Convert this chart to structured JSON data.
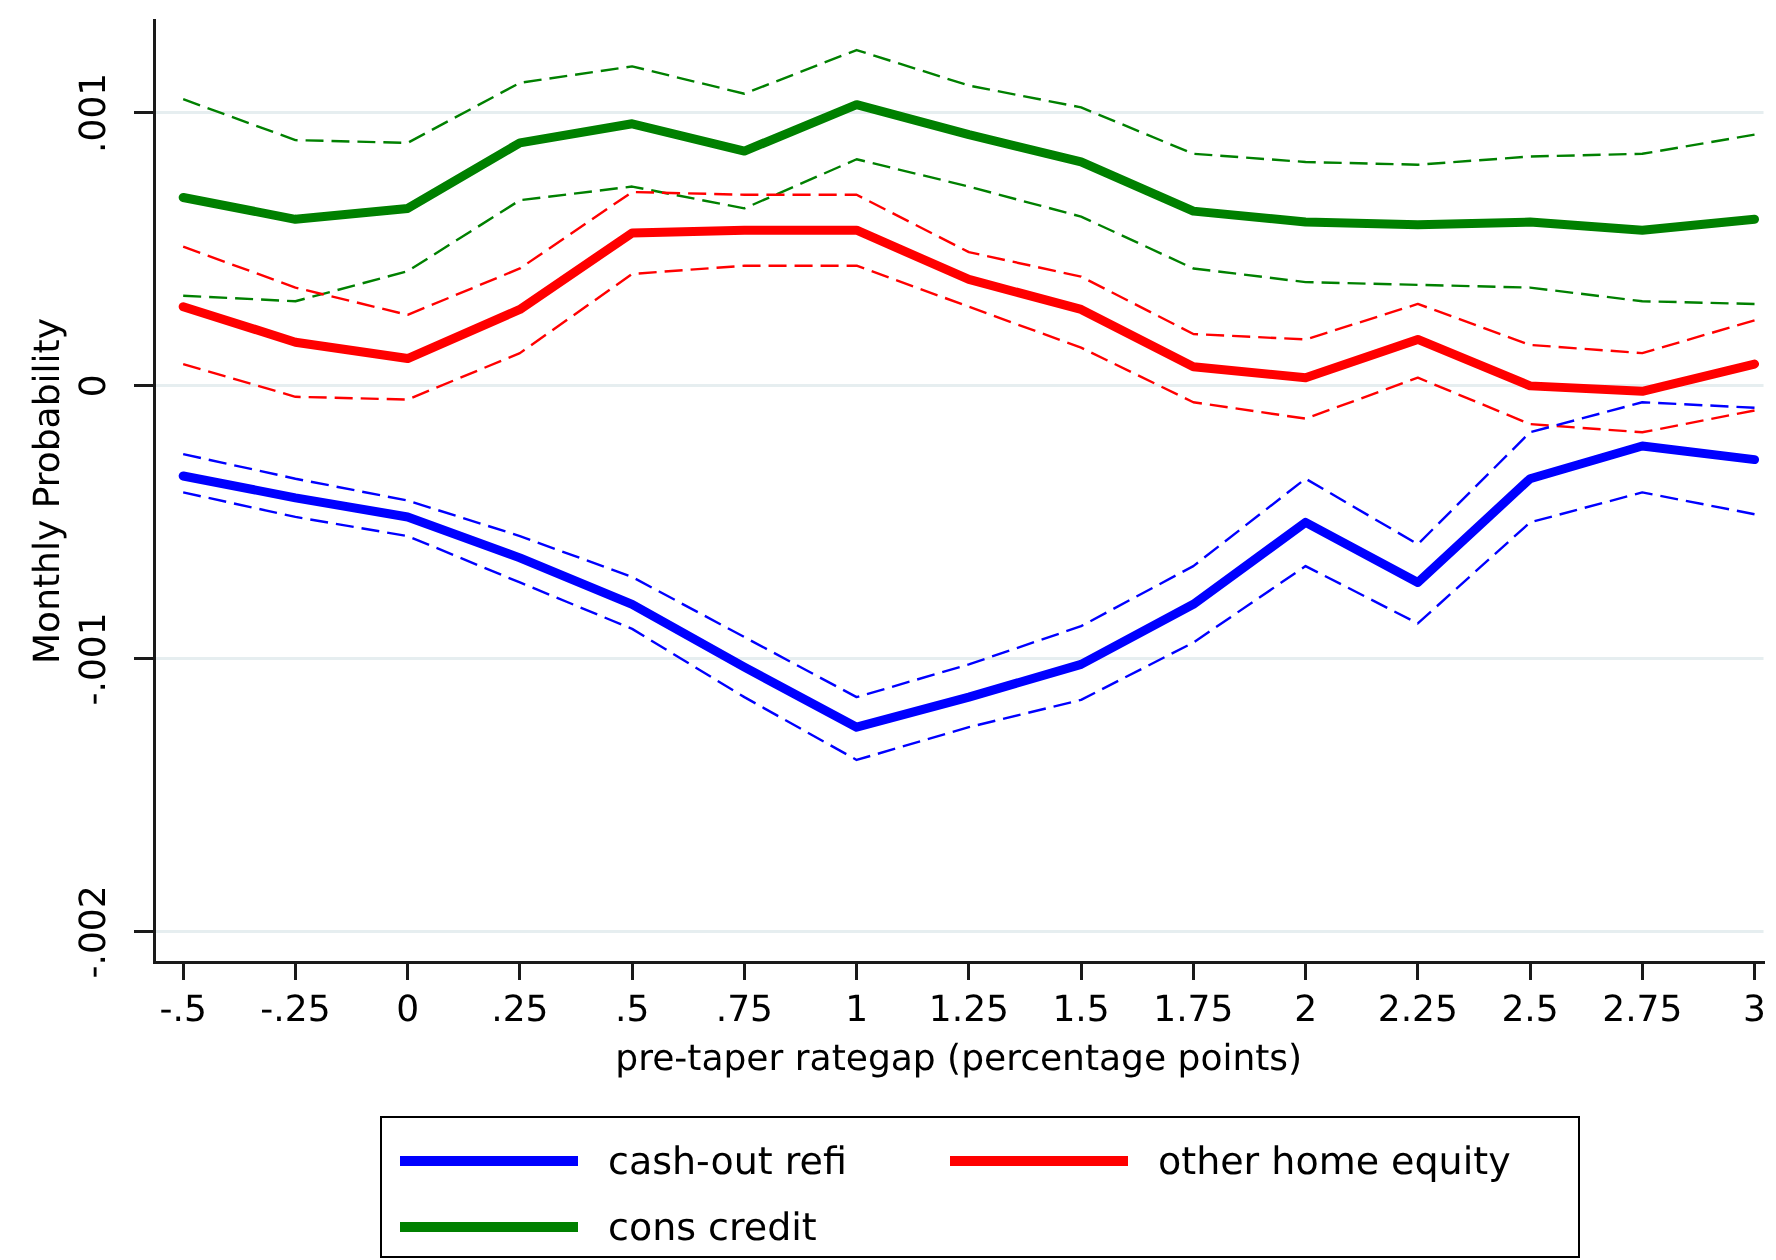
{
  "chart_data": {
    "type": "line",
    "xlabel": "pre-taper rategap (percentage points)",
    "ylabel": "Monthly Probability",
    "x": [
      -0.5,
      -0.25,
      0,
      0.25,
      0.5,
      0.75,
      1,
      1.25,
      1.5,
      1.75,
      2,
      2.25,
      2.5,
      2.75,
      3
    ],
    "xlim": [
      -0.565,
      3.02
    ],
    "xticks": [
      {
        "value": -0.5,
        "label": "-.5"
      },
      {
        "value": -0.25,
        "label": "-.25"
      },
      0,
      {
        "value": 0.25,
        "label": ".25"
      },
      {
        "value": 0.5,
        "label": ".5"
      },
      {
        "value": 0.75,
        "label": ".75"
      },
      1,
      1.25,
      1.5,
      1.75,
      2,
      2.25,
      2.5,
      2.75,
      3
    ],
    "ylim": [
      -0.00211,
      0.00134
    ],
    "yticks": [
      {
        "value": -0.002,
        "label": "-.002"
      },
      {
        "value": -0.001,
        "label": "-.001"
      },
      0,
      {
        "value": 0.001,
        "label": ".001"
      }
    ],
    "grid": "y",
    "legend": "bottom",
    "marker": "none",
    "line_style": "solid",
    "series": [
      {
        "name": "cash-out refi",
        "color": "#0000ff",
        "values": [
          -0.00033,
          -0.00041,
          -0.00048,
          -0.00063,
          -0.0008,
          -0.00103,
          -0.00125,
          -0.00114,
          -0.00102,
          -0.0008,
          -0.0005,
          -0.00072,
          -0.00034,
          -0.00022,
          -0.00027
        ]
      },
      {
        "name": "other home equity",
        "color": "#ff0000",
        "values": [
          0.00029,
          0.00016,
          0.0001,
          0.00028,
          0.00056,
          0.00057,
          0.00057,
          0.00039,
          0.00028,
          7e-05,
          3e-05,
          0.00017,
          0,
          -2e-05,
          8e-05
        ]
      },
      {
        "name": "cons credit",
        "color": "#008000",
        "values": [
          0.00069,
          0.00061,
          0.00065,
          0.00089,
          0.00096,
          0.00086,
          0.00103,
          0.00092,
          0.00082,
          0.00064,
          0.0006,
          0.00059,
          0.0006,
          0.00057,
          0.00061
        ]
      },
      {
        "color": "#0000ff",
        "line_style": "dashed",
        "values": [
          -0.00025,
          -0.00034,
          -0.00042,
          -0.00055,
          -0.0007,
          -0.00092,
          -0.00114,
          -0.00102,
          -0.00088,
          -0.00066,
          -0.00034,
          -0.00058,
          -0.00017,
          -6e-05,
          -8e-05
        ]
      },
      {
        "color": "#0000ff",
        "line_style": "dashed",
        "values": [
          -0.00039,
          -0.00048,
          -0.00055,
          -0.00072,
          -0.00089,
          -0.00114,
          -0.00137,
          -0.00125,
          -0.00115,
          -0.00094,
          -0.00066,
          -0.00087,
          -0.0005,
          -0.00039,
          -0.00047
        ]
      },
      {
        "color": "#ff0000",
        "line_style": "dashed",
        "values": [
          0.00051,
          0.00036,
          0.00026,
          0.00043,
          0.00071,
          0.0007,
          0.0007,
          0.00049,
          0.0004,
          0.00019,
          0.00017,
          0.0003,
          0.00015,
          0.00012,
          0.00024
        ]
      },
      {
        "color": "#ff0000",
        "line_style": "dashed",
        "values": [
          8e-05,
          -4e-05,
          -5e-05,
          0.00012,
          0.00041,
          0.00044,
          0.00044,
          0.00029,
          0.00014,
          -6e-05,
          -0.00012,
          3e-05,
          -0.00014,
          -0.00017,
          -9e-05
        ]
      },
      {
        "color": "#008000",
        "line_style": "dashed",
        "values": [
          0.00105,
          0.0009,
          0.00089,
          0.00111,
          0.00117,
          0.00107,
          0.00123,
          0.0011,
          0.00102,
          0.00085,
          0.00082,
          0.00081,
          0.00084,
          0.00085,
          0.00092
        ]
      },
      {
        "color": "#008000",
        "line_style": "dashed",
        "values": [
          0.00033,
          0.00031,
          0.00042,
          0.00068,
          0.00073,
          0.00065,
          0.00083,
          0.00073,
          0.00062,
          0.00043,
          0.00038,
          0.00037,
          0.00036,
          0.00031,
          0.0003
        ]
      }
    ]
  }
}
